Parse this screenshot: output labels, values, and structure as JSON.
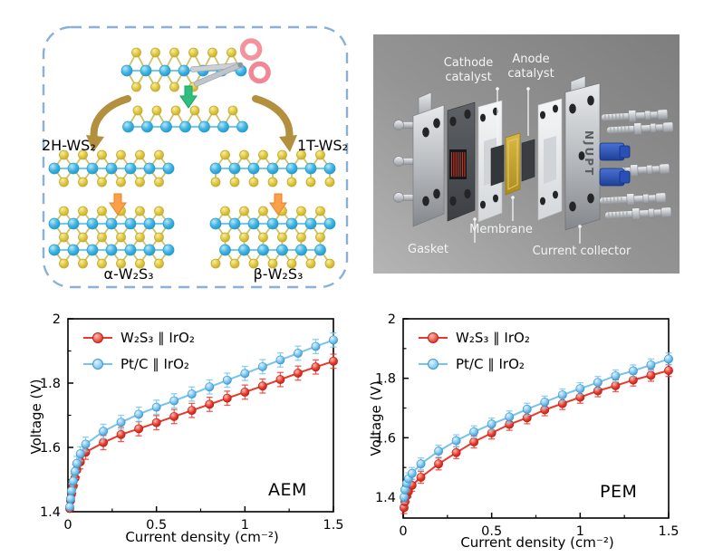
{
  "synthesis_panel": {
    "label_2h": "2H-WS₂",
    "label_1t": "1T-WS₂",
    "label_alpha": "α-W₂S₃",
    "label_beta": "β-W₂S₃",
    "colors": {
      "border_dash": "#8ab0d8",
      "atom_w_blue": "#41b5e3",
      "atom_s_yellow": "#e0ca45",
      "green_arrow": "#2fbe7e",
      "gold_arrow": "#b2903e",
      "orange_arrow": "#f9a04a"
    }
  },
  "device_panel": {
    "cathode_label": "Cathode catalyst",
    "anode_label": "Anode catalyst",
    "membrane_label": "Membrane",
    "gasket_label": "Gasket",
    "current_collector_label": "Current collector",
    "plate_engraving": "NJUPT"
  },
  "chart_data": [
    {
      "type": "line",
      "panel_label": "AEM",
      "xlabel": "Current density (cm⁻²)",
      "ylabel": "Voltage (V)",
      "xlim": [
        0,
        1.5
      ],
      "ylim": [
        1.4,
        2.0
      ],
      "xticks": {
        "values": [
          0,
          0.5,
          1,
          1.5
        ],
        "labels": [
          "0",
          "0.5",
          "1",
          "1.5"
        ]
      },
      "yticks": {
        "values": [
          1.4,
          1.6,
          1.8,
          2.0
        ],
        "labels": [
          "1.4",
          "1.6",
          "1.8",
          "2"
        ]
      },
      "xminor": [
        0.25,
        0.75,
        1.25
      ],
      "yminor": [
        1.5,
        1.7,
        1.9
      ],
      "grid": false,
      "legend_position": "top-left",
      "series": [
        {
          "name": "W₂S₃ ∥ IrO₂",
          "color": "#e8392c",
          "color_light": "#f8beb6",
          "edge": "#bb2318",
          "err": 0.022,
          "x": [
            0.01,
            0.015,
            0.02,
            0.03,
            0.04,
            0.05,
            0.07,
            0.1,
            0.2,
            0.3,
            0.4,
            0.5,
            0.6,
            0.7,
            0.8,
            0.9,
            1.0,
            1.1,
            1.2,
            1.3,
            1.4,
            1.5
          ],
          "y": [
            1.41,
            1.435,
            1.455,
            1.48,
            1.505,
            1.53,
            1.555,
            1.585,
            1.615,
            1.64,
            1.658,
            1.677,
            1.696,
            1.715,
            1.734,
            1.753,
            1.772,
            1.791,
            1.811,
            1.831,
            1.85,
            1.868
          ]
        },
        {
          "name": "Pt/C ∥ IrO₂",
          "color": "#76c4ee",
          "color_light": "#e2f3fd",
          "edge": "#3f98cf",
          "err": 0.022,
          "x": [
            0.01,
            0.015,
            0.02,
            0.03,
            0.04,
            0.05,
            0.07,
            0.1,
            0.2,
            0.3,
            0.4,
            0.5,
            0.6,
            0.7,
            0.8,
            0.9,
            1.0,
            1.1,
            1.2,
            1.3,
            1.4,
            1.5
          ],
          "y": [
            1.415,
            1.44,
            1.465,
            1.495,
            1.525,
            1.55,
            1.58,
            1.61,
            1.65,
            1.678,
            1.703,
            1.725,
            1.745,
            1.766,
            1.788,
            1.809,
            1.83,
            1.851,
            1.872,
            1.893,
            1.914,
            1.934
          ]
        }
      ]
    },
    {
      "type": "line",
      "panel_label": "PEM",
      "xlabel": "Current density (cm⁻²)",
      "ylabel": "Voltage (V)",
      "xlim": [
        0,
        1.5
      ],
      "ylim": [
        1.33,
        2.0
      ],
      "xticks": {
        "values": [
          0,
          0.5,
          1,
          1.5
        ],
        "labels": [
          "0",
          "0.5",
          "1",
          "1.5"
        ]
      },
      "yticks": {
        "values": [
          1.4,
          1.6,
          1.8,
          2.0
        ],
        "labels": [
          "1.4",
          "1.6",
          "1.8",
          "2"
        ]
      },
      "xminor": [
        0.25,
        0.75,
        1.25
      ],
      "yminor": [
        1.5,
        1.7,
        1.9
      ],
      "grid": false,
      "legend_position": "top-left",
      "series": [
        {
          "name": "W₂S₃ ∥ IrO₂",
          "color": "#e8392c",
          "color_light": "#f8beb6",
          "edge": "#bb2318",
          "err": 0.02,
          "x": [
            0.005,
            0.01,
            0.02,
            0.03,
            0.05,
            0.1,
            0.2,
            0.3,
            0.4,
            0.5,
            0.6,
            0.7,
            0.8,
            0.9,
            1.0,
            1.1,
            1.2,
            1.3,
            1.4,
            1.5
          ],
          "y": [
            1.365,
            1.385,
            1.405,
            1.42,
            1.44,
            1.467,
            1.512,
            1.55,
            1.586,
            1.616,
            1.645,
            1.667,
            1.694,
            1.715,
            1.736,
            1.758,
            1.775,
            1.794,
            1.81,
            1.826
          ]
        },
        {
          "name": "Pt/C ∥ IrO₂",
          "color": "#76c4ee",
          "color_light": "#e2f3fd",
          "edge": "#3f98cf",
          "err": 0.02,
          "x": [
            0.005,
            0.01,
            0.02,
            0.03,
            0.05,
            0.1,
            0.2,
            0.3,
            0.4,
            0.5,
            0.6,
            0.7,
            0.8,
            0.9,
            1.0,
            1.1,
            1.2,
            1.3,
            1.4,
            1.5
          ],
          "y": [
            1.4,
            1.425,
            1.447,
            1.462,
            1.48,
            1.512,
            1.555,
            1.59,
            1.62,
            1.646,
            1.67,
            1.696,
            1.72,
            1.744,
            1.765,
            1.786,
            1.808,
            1.825,
            1.845,
            1.865
          ]
        }
      ]
    }
  ]
}
